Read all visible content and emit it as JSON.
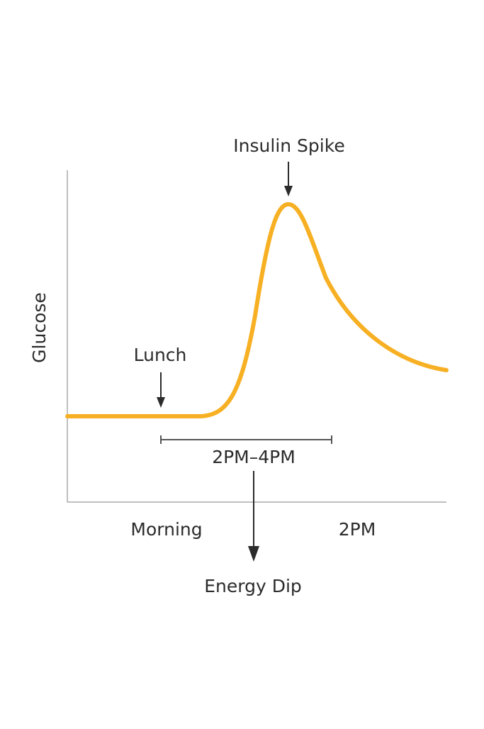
{
  "diagram": {
    "y_axis_label": "Glucose",
    "peak_label": "Insulin Spike",
    "meal_label": "Lunch",
    "range_label": "2PM–4PM",
    "x_start_label": "Morning",
    "x_end_label": "2PM",
    "dip_label": "Energy Dip"
  }
}
